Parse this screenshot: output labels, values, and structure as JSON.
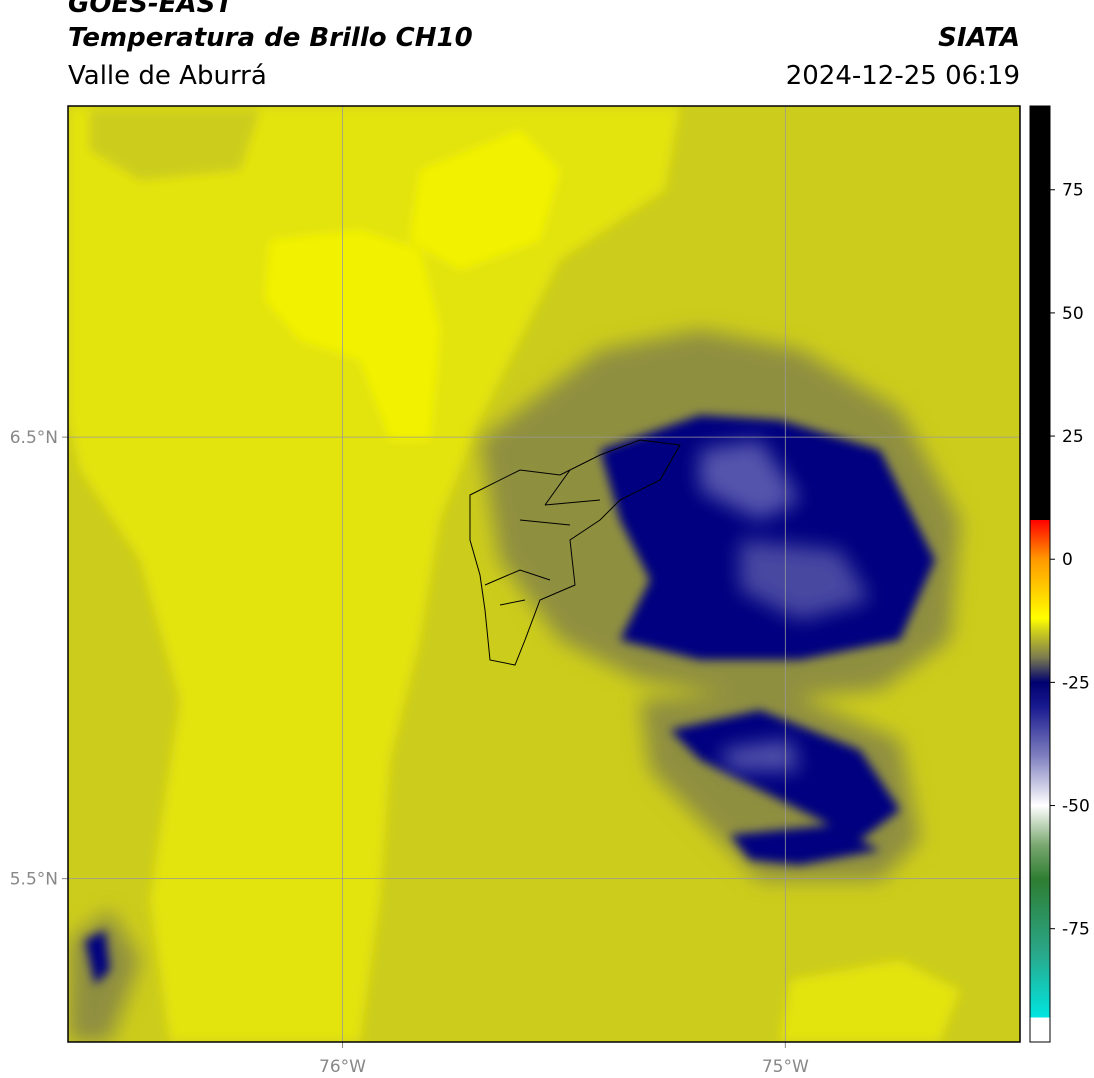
{
  "header": {
    "title": "GOES-EAST",
    "subtitle": "Temperatura de Brillo CH10",
    "region": "Valle de Aburrá",
    "source": "SIATA",
    "datetime": "2024-12-25 06:19"
  },
  "map": {
    "lon_range": [
      -76.62,
      -74.47
    ],
    "lat_range": [
      5.13,
      7.25
    ],
    "lat_ticks": [
      {
        "value": 6.5,
        "label": "6.5°N"
      },
      {
        "value": 5.5,
        "label": "5.5°N"
      }
    ],
    "lon_ticks": [
      {
        "value": -76,
        "label": "76°W"
      },
      {
        "value": -75,
        "label": "75°W"
      }
    ]
  },
  "colorbar": {
    "range": [
      -98,
      92
    ],
    "ticks": [
      75,
      50,
      25,
      0,
      -25,
      -50,
      -75
    ],
    "stops": [
      {
        "value": -98,
        "color": "#ffffff"
      },
      {
        "value": -93,
        "color": "#ffffff"
      },
      {
        "value": -93,
        "color": "#00e5e0"
      },
      {
        "value": -80,
        "color": "#2aa88a"
      },
      {
        "value": -65,
        "color": "#2e7d32"
      },
      {
        "value": -58,
        "color": "#7aa870"
      },
      {
        "value": -50,
        "color": "#ffffff"
      },
      {
        "value": -40,
        "color": "#8080c0"
      },
      {
        "value": -30,
        "color": "#1a1a90"
      },
      {
        "value": -25,
        "color": "#000070"
      },
      {
        "value": -20,
        "color": "#7a7a50"
      },
      {
        "value": -15,
        "color": "#c8c820"
      },
      {
        "value": -12,
        "color": "#ffff00"
      },
      {
        "value": 0,
        "color": "#ff9900"
      },
      {
        "value": 8,
        "color": "#ff0000"
      },
      {
        "value": 8,
        "color": "#000000"
      },
      {
        "value": 92,
        "color": "#000000"
      }
    ]
  }
}
